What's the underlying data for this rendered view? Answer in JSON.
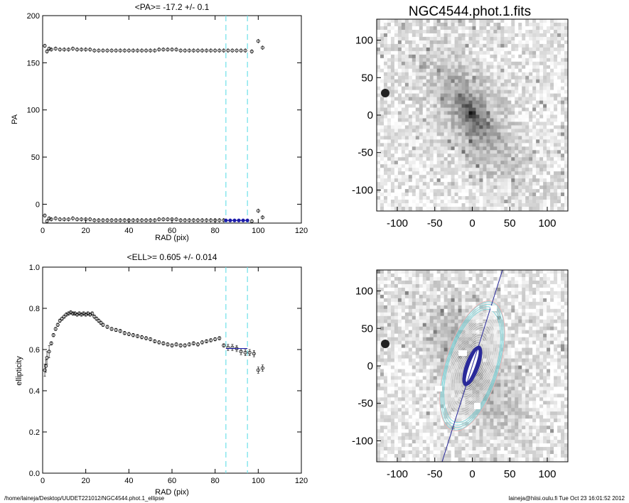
{
  "footer": {
    "path": "/home/laineja/Desktop/UUDET221012/NGC4544.phot.1_ellipse",
    "user_time": "laineja@hiisi.oulu.fi  Tue Oct 23 16:01:52 2012"
  },
  "image_panels": {
    "top_title": "NGC4544.phot.1.fits",
    "axis_ticks": [
      "-100",
      "-50",
      "0",
      "50",
      "100"
    ],
    "y_ticks": [
      "100",
      "50",
      "0",
      "-50",
      "-100"
    ]
  },
  "chart_data": [
    {
      "type": "scatter",
      "title": "<PA>= -17.2 +/-   0.1",
      "xlabel": "RAD (pix)",
      "ylabel": "PA",
      "xlim": [
        0,
        120
      ],
      "ylim": [
        -20,
        200
      ],
      "xticks": [
        "0",
        "20",
        "40",
        "60",
        "80",
        "100",
        "120"
      ],
      "yticks": [
        "200",
        "150",
        "100",
        "50",
        "0"
      ],
      "vlines": [
        85,
        95
      ],
      "fit_range": [
        85,
        95
      ],
      "fit_value": -17.2,
      "series": [
        {
          "values_upper": [
            [
              1,
              168
            ],
            [
              2,
              162
            ],
            [
              3,
              165
            ],
            [
              4,
              164
            ],
            [
              6,
              165
            ],
            [
              8,
              164
            ],
            [
              10,
              164
            ],
            [
              12,
              164
            ],
            [
              14,
              165
            ],
            [
              16,
              164
            ],
            [
              18,
              164
            ],
            [
              20,
              164
            ],
            [
              22,
              164
            ],
            [
              24,
              163
            ],
            [
              26,
              163
            ],
            [
              28,
              163
            ],
            [
              30,
              163
            ],
            [
              32,
              163
            ],
            [
              34,
              163
            ],
            [
              36,
              163
            ],
            [
              38,
              163
            ],
            [
              40,
              163
            ],
            [
              42,
              163
            ],
            [
              44,
              163
            ],
            [
              46,
              163
            ],
            [
              48,
              163
            ],
            [
              50,
              163
            ],
            [
              52,
              163
            ],
            [
              54,
              164
            ],
            [
              56,
              164
            ],
            [
              58,
              164
            ],
            [
              60,
              164
            ],
            [
              62,
              164
            ],
            [
              64,
              163
            ],
            [
              66,
              163
            ],
            [
              68,
              163
            ],
            [
              70,
              163
            ],
            [
              72,
              163
            ],
            [
              74,
              163
            ],
            [
              76,
              163
            ],
            [
              78,
              163
            ],
            [
              80,
              163
            ],
            [
              82,
              163
            ],
            [
              84,
              163
            ],
            [
              86,
              163
            ],
            [
              88,
              163
            ],
            [
              90,
              163
            ],
            [
              92,
              163
            ],
            [
              94,
              163
            ],
            [
              97,
              162
            ],
            [
              100,
              173
            ],
            [
              102,
              166
            ]
          ],
          "values_lower": [
            [
              1,
              -12
            ],
            [
              2,
              -18
            ],
            [
              3,
              -15
            ],
            [
              4,
              -16
            ],
            [
              6,
              -15
            ],
            [
              8,
              -16
            ],
            [
              10,
              -16
            ],
            [
              12,
              -16
            ],
            [
              14,
              -15
            ],
            [
              16,
              -16
            ],
            [
              18,
              -16
            ],
            [
              20,
              -16
            ],
            [
              22,
              -16
            ],
            [
              24,
              -17
            ],
            [
              26,
              -17
            ],
            [
              28,
              -17
            ],
            [
              30,
              -17
            ],
            [
              32,
              -17
            ],
            [
              34,
              -17
            ],
            [
              36,
              -17
            ],
            [
              38,
              -17
            ],
            [
              40,
              -17
            ],
            [
              42,
              -17
            ],
            [
              44,
              -17
            ],
            [
              46,
              -17
            ],
            [
              48,
              -17
            ],
            [
              50,
              -17
            ],
            [
              52,
              -17
            ],
            [
              54,
              -16
            ],
            [
              56,
              -16
            ],
            [
              58,
              -16
            ],
            [
              60,
              -16
            ],
            [
              62,
              -16
            ],
            [
              64,
              -17
            ],
            [
              66,
              -17
            ],
            [
              68,
              -17
            ],
            [
              70,
              -17
            ],
            [
              72,
              -17
            ],
            [
              74,
              -17
            ],
            [
              76,
              -17
            ],
            [
              78,
              -17
            ],
            [
              80,
              -17
            ],
            [
              82,
              -17
            ],
            [
              84,
              -17
            ],
            [
              97,
              -18
            ],
            [
              100,
              -7
            ],
            [
              102,
              -14
            ]
          ],
          "values_fit": [
            [
              85,
              -17.2
            ],
            [
              87,
              -17.2
            ],
            [
              89,
              -17.2
            ],
            [
              91,
              -17.2
            ],
            [
              93,
              -17.2
            ],
            [
              95,
              -17.2
            ]
          ]
        }
      ]
    },
    {
      "type": "scatter",
      "title": "<ELL>= 0.605 +/-  0.014",
      "xlabel": "RAD (pix)",
      "ylabel": "ellipticity",
      "xlim": [
        0,
        120
      ],
      "ylim": [
        0.0,
        1.0
      ],
      "xticks": [
        "0",
        "20",
        "40",
        "60",
        "80",
        "100",
        "120"
      ],
      "yticks": [
        "1.0",
        "0.8",
        "0.6",
        "0.4",
        "0.2",
        "0.0"
      ],
      "vlines": [
        85,
        95
      ],
      "fit_range": [
        85,
        95
      ],
      "fit_value": 0.605,
      "series": [
        {
          "values": [
            [
              1,
              0.5
            ],
            [
              1.5,
              0.52
            ],
            [
              2,
              0.56
            ],
            [
              3,
              0.59
            ],
            [
              4,
              0.63
            ],
            [
              5,
              0.67
            ],
            [
              6,
              0.7
            ],
            [
              7,
              0.72
            ],
            [
              8,
              0.74
            ],
            [
              9,
              0.75
            ],
            [
              10,
              0.76
            ],
            [
              11,
              0.77
            ],
            [
              12,
              0.775
            ],
            [
              13,
              0.78
            ],
            [
              14,
              0.775
            ],
            [
              15,
              0.775
            ],
            [
              16,
              0.77
            ],
            [
              17,
              0.775
            ],
            [
              18,
              0.77
            ],
            [
              19,
              0.775
            ],
            [
              20,
              0.77
            ],
            [
              21,
              0.775
            ],
            [
              22,
              0.77
            ],
            [
              23,
              0.775
            ],
            [
              24,
              0.76
            ],
            [
              25,
              0.75
            ],
            [
              26,
              0.74
            ],
            [
              27,
              0.73
            ],
            [
              28,
              0.72
            ],
            [
              30,
              0.71
            ],
            [
              32,
              0.7
            ],
            [
              34,
              0.695
            ],
            [
              36,
              0.69
            ],
            [
              38,
              0.68
            ],
            [
              40,
              0.675
            ],
            [
              42,
              0.67
            ],
            [
              44,
              0.665
            ],
            [
              46,
              0.66
            ],
            [
              48,
              0.655
            ],
            [
              50,
              0.65
            ],
            [
              52,
              0.64
            ],
            [
              54,
              0.635
            ],
            [
              56,
              0.63
            ],
            [
              58,
              0.625
            ],
            [
              60,
              0.62
            ],
            [
              62,
              0.625
            ],
            [
              64,
              0.62
            ],
            [
              66,
              0.62
            ],
            [
              68,
              0.625
            ],
            [
              70,
              0.63
            ],
            [
              72,
              0.625
            ],
            [
              74,
              0.635
            ],
            [
              76,
              0.64
            ],
            [
              78,
              0.645
            ],
            [
              80,
              0.65
            ],
            [
              82,
              0.655
            ],
            [
              84,
              0.62
            ],
            [
              86,
              0.61
            ],
            [
              88,
              0.61
            ],
            [
              90,
              0.605
            ],
            [
              92,
              0.59
            ],
            [
              94,
              0.585
            ],
            [
              96,
              0.585
            ],
            [
              98,
              0.58
            ],
            [
              100,
              0.5
            ],
            [
              102,
              0.51
            ]
          ]
        }
      ]
    }
  ]
}
